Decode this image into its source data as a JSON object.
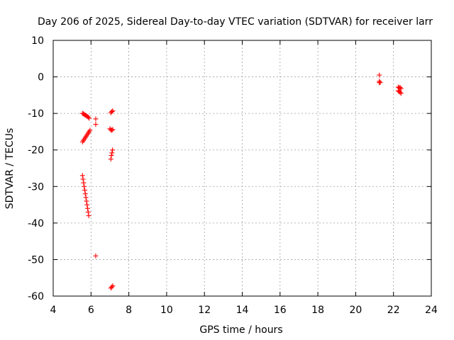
{
  "chart_data": {
    "type": "scatter",
    "title": "Day 206 of 2025, Sidereal Day-to-day VTEC variation (SDTVAR) for receiver larr",
    "xlabel": "GPS time / hours",
    "ylabel": "SDTVAR / TECUs",
    "xlim": [
      4,
      24
    ],
    "ylim": [
      -60,
      10
    ],
    "xticks": [
      4,
      6,
      8,
      10,
      12,
      14,
      16,
      18,
      20,
      22,
      24
    ],
    "yticks": [
      10,
      0,
      -10,
      -20,
      -30,
      -40,
      -50,
      -60
    ],
    "grid": true,
    "legend": "none",
    "marker": "plus",
    "color": "#ff0000",
    "series": [
      {
        "points": [
          [
            5.55,
            -10.0
          ],
          [
            5.6,
            -10.1
          ],
          [
            5.65,
            -10.3
          ],
          [
            5.7,
            -10.5
          ],
          [
            5.75,
            -10.6
          ],
          [
            5.8,
            -10.8
          ],
          [
            5.85,
            -11.0
          ],
          [
            5.9,
            -11.3
          ],
          [
            5.55,
            -17.8
          ],
          [
            5.6,
            -17.4
          ],
          [
            5.65,
            -17.0
          ],
          [
            5.7,
            -16.6
          ],
          [
            5.75,
            -16.2
          ],
          [
            5.8,
            -15.8
          ],
          [
            5.85,
            -15.4
          ],
          [
            5.9,
            -15.0
          ],
          [
            5.95,
            -14.6
          ],
          [
            5.55,
            -27.0
          ],
          [
            5.58,
            -28.0
          ],
          [
            5.61,
            -29.0
          ],
          [
            5.64,
            -30.0
          ],
          [
            5.67,
            -31.0
          ],
          [
            5.7,
            -32.0
          ],
          [
            5.73,
            -33.0
          ],
          [
            5.76,
            -34.0
          ],
          [
            5.79,
            -35.0
          ],
          [
            5.82,
            -36.0
          ],
          [
            5.85,
            -37.0
          ],
          [
            5.88,
            -38.0
          ],
          [
            6.25,
            -11.5
          ],
          [
            6.25,
            -13.0
          ],
          [
            6.25,
            -49.0
          ],
          [
            7.05,
            -9.8
          ],
          [
            7.1,
            -9.5
          ],
          [
            7.15,
            -9.3
          ],
          [
            7.0,
            -14.2
          ],
          [
            7.05,
            -14.5
          ],
          [
            7.1,
            -14.6
          ],
          [
            7.15,
            -14.4
          ],
          [
            7.05,
            -22.5
          ],
          [
            7.08,
            -21.5
          ],
          [
            7.11,
            -20.8
          ],
          [
            7.14,
            -20.0
          ],
          [
            7.05,
            -57.8
          ],
          [
            7.1,
            -57.5
          ],
          [
            7.15,
            -57.2
          ],
          [
            21.25,
            0.5
          ],
          [
            21.25,
            -1.2
          ],
          [
            21.25,
            -1.6
          ],
          [
            21.3,
            -1.5
          ],
          [
            22.25,
            -2.8
          ],
          [
            22.3,
            -3.0
          ],
          [
            22.35,
            -2.9
          ],
          [
            22.4,
            -3.2
          ],
          [
            22.25,
            -3.8
          ],
          [
            22.3,
            -4.0
          ],
          [
            22.35,
            -4.2
          ],
          [
            22.4,
            -4.5
          ]
        ]
      }
    ]
  }
}
